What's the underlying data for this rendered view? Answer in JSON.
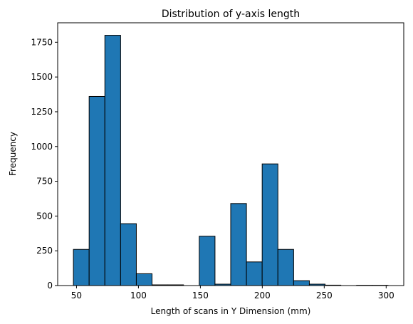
{
  "chart_data": {
    "type": "bar",
    "title": "Distribution of y-axis length",
    "xlabel": "Length of scans in Y Dimension (mm)",
    "ylabel": "Frequency",
    "bin_edges": [
      47.5,
      60.2,
      72.9,
      85.6,
      98.3,
      111.0,
      123.7,
      136.4,
      149.1,
      161.8,
      174.5,
      187.2,
      199.9,
      212.6,
      225.3,
      238.0,
      250.7,
      263.4,
      276.1,
      288.8,
      301.5
    ],
    "values": [
      260,
      1360,
      1800,
      445,
      85,
      5,
      5,
      0,
      355,
      10,
      590,
      170,
      875,
      260,
      35,
      10,
      3,
      0,
      2,
      2
    ],
    "xlim": [
      34.8,
      314.2
    ],
    "ylim": [
      0,
      1890
    ],
    "xticks": [
      50,
      100,
      150,
      200,
      250,
      300
    ],
    "yticks": [
      0,
      250,
      500,
      750,
      1000,
      1250,
      1500,
      1750
    ],
    "bar_color": "#1f77b4",
    "edge_color": "#000000",
    "grid": false,
    "legend": "none"
  }
}
